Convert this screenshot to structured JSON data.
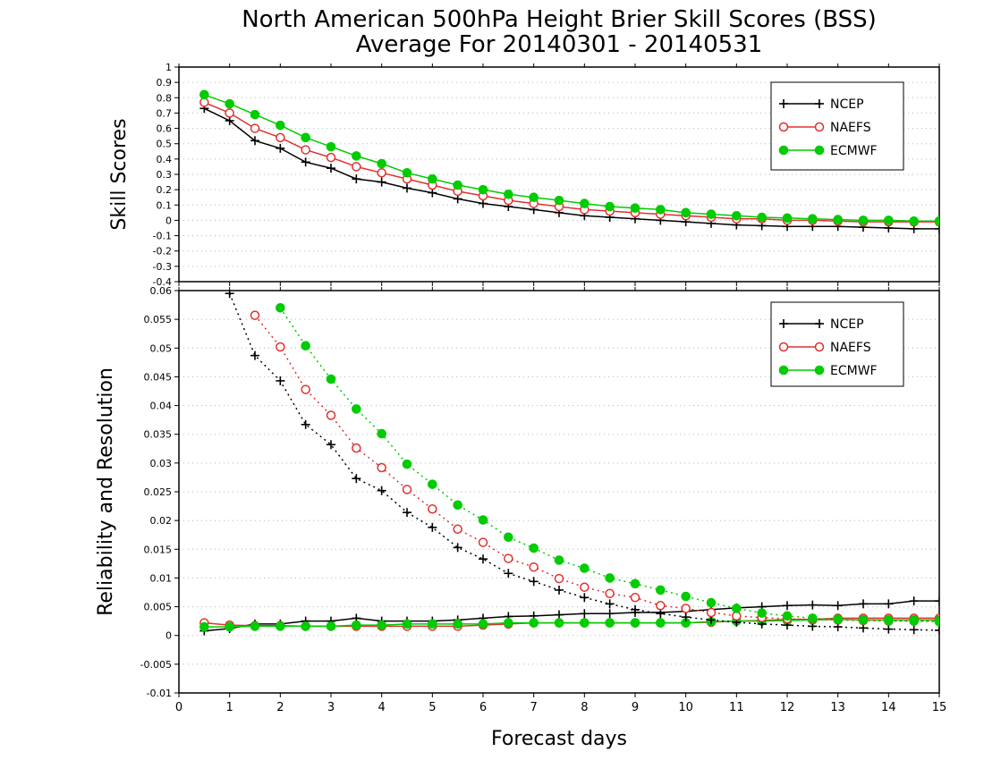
{
  "title_line1": "North American 500hPa Height Brier Skill Scores (BSS)",
  "title_line2": "Average For 20140301 - 20140531",
  "xlabel": "Forecast days",
  "colors": {
    "NCEP": "#000000",
    "NAEFS": "#e03030",
    "ECMWF": "#00cc00"
  },
  "chart_data": [
    {
      "type": "line",
      "ylabel": "Skill Scores",
      "xlim": [
        0,
        15
      ],
      "ylim": [
        -0.4,
        1
      ],
      "x_ticks": [
        "0",
        "1",
        "2",
        "3",
        "4",
        "5",
        "6",
        "7",
        "8",
        "9",
        "10",
        "11",
        "12",
        "13",
        "14",
        "15"
      ],
      "y_ticks": [
        "-0.4",
        "-0.3",
        "-0.2",
        "-0.1",
        "0",
        "0.1",
        "0.2",
        "0.3",
        "0.4",
        "0.5",
        "0.6",
        "0.7",
        "0.8",
        "0.9",
        "1"
      ],
      "grid": true,
      "legend": "top-right",
      "x": [
        0.5,
        1,
        1.5,
        2,
        2.5,
        3,
        3.5,
        4,
        4.5,
        5,
        5.5,
        6,
        6.5,
        7,
        7.5,
        8,
        8.5,
        9,
        9.5,
        10,
        10.5,
        11,
        11.5,
        12,
        12.5,
        13,
        13.5,
        14,
        14.5,
        15
      ],
      "series": [
        {
          "name": "NCEP",
          "marker": "plus",
          "style": "solid",
          "values": [
            0.73,
            0.65,
            0.52,
            0.47,
            0.38,
            0.34,
            0.27,
            0.25,
            0.21,
            0.18,
            0.14,
            0.11,
            0.09,
            0.07,
            0.05,
            0.03,
            0.02,
            0.01,
            0.0,
            -0.01,
            -0.02,
            -0.03,
            -0.035,
            -0.04,
            -0.04,
            -0.04,
            -0.045,
            -0.05,
            -0.055,
            -0.055
          ]
        },
        {
          "name": "NAEFS",
          "marker": "circle-open",
          "style": "solid",
          "values": [
            0.77,
            0.7,
            0.6,
            0.54,
            0.46,
            0.41,
            0.35,
            0.31,
            0.27,
            0.23,
            0.19,
            0.16,
            0.13,
            0.11,
            0.09,
            0.07,
            0.06,
            0.05,
            0.04,
            0.03,
            0.02,
            0.01,
            0.01,
            0.0,
            0.0,
            -0.005,
            -0.01,
            -0.01,
            -0.01,
            -0.01
          ]
        },
        {
          "name": "ECMWF",
          "marker": "circle-filled",
          "style": "solid",
          "values": [
            0.82,
            0.76,
            0.69,
            0.62,
            0.54,
            0.48,
            0.42,
            0.37,
            0.31,
            0.27,
            0.23,
            0.2,
            0.17,
            0.15,
            0.13,
            0.11,
            0.09,
            0.08,
            0.07,
            0.05,
            0.04,
            0.03,
            0.02,
            0.015,
            0.01,
            0.005,
            0.0,
            0.0,
            -0.005,
            -0.005
          ]
        }
      ]
    },
    {
      "type": "line",
      "ylabel": "Reliability and Resolution",
      "xlim": [
        0,
        15
      ],
      "ylim": [
        -0.01,
        0.06
      ],
      "x_ticks": [
        "0",
        "1",
        "2",
        "3",
        "4",
        "5",
        "6",
        "7",
        "8",
        "9",
        "10",
        "11",
        "12",
        "13",
        "14",
        "15"
      ],
      "y_ticks": [
        "-0.01",
        "-0.005",
        "0",
        "0.005",
        "0.01",
        "0.015",
        "0.02",
        "0.025",
        "0.03",
        "0.035",
        "0.04",
        "0.045",
        "0.05",
        "0.055",
        "0.06"
      ],
      "grid": true,
      "legend": "top-right",
      "x": [
        0.5,
        1,
        1.5,
        2,
        2.5,
        3,
        3.5,
        4,
        4.5,
        5,
        5.5,
        6,
        6.5,
        7,
        7.5,
        8,
        8.5,
        9,
        9.5,
        10,
        10.5,
        11,
        11.5,
        12,
        12.5,
        13,
        13.5,
        14,
        14.5,
        15
      ],
      "series": [
        {
          "name": "NCEP",
          "role": "reliability",
          "marker": "plus",
          "style": "solid",
          "values": [
            0.0008,
            0.0012,
            0.002,
            0.002,
            0.0025,
            0.0025,
            0.003,
            0.0025,
            0.0025,
            0.0025,
            0.0027,
            0.003,
            0.0033,
            0.0034,
            0.0036,
            0.0038,
            0.0038,
            0.004,
            0.004,
            0.0042,
            0.0045,
            0.0048,
            0.005,
            0.0052,
            0.0053,
            0.0052,
            0.0055,
            0.0055,
            0.006,
            0.006
          ]
        },
        {
          "name": "NAEFS",
          "role": "reliability",
          "marker": "circle-open",
          "style": "solid",
          "values": [
            0.0022,
            0.0018,
            0.0017,
            0.0017,
            0.0016,
            0.0016,
            0.0016,
            0.0016,
            0.0016,
            0.0016,
            0.0016,
            0.0018,
            0.002,
            0.0022,
            0.0022,
            0.0022,
            0.0022,
            0.0022,
            0.0022,
            0.0022,
            0.0023,
            0.0025,
            0.0026,
            0.0028,
            0.0028,
            0.003,
            0.003,
            0.003,
            0.003,
            0.003
          ]
        },
        {
          "name": "ECMWF",
          "role": "reliability",
          "marker": "circle-filled",
          "style": "solid",
          "values": [
            0.0015,
            0.0015,
            0.0016,
            0.0016,
            0.0016,
            0.0016,
            0.0018,
            0.0018,
            0.002,
            0.002,
            0.002,
            0.002,
            0.0022,
            0.0022,
            0.0022,
            0.0022,
            0.0022,
            0.0022,
            0.0022,
            0.0022,
            0.0024,
            0.0025,
            0.0025,
            0.0026,
            0.0027,
            0.0028,
            0.0027,
            0.0027,
            0.0027,
            0.0027
          ]
        },
        {
          "name": "NCEP",
          "role": "resolution",
          "marker": "plus",
          "style": "dotted",
          "values": [
            null,
            0.0595,
            0.0487,
            0.0443,
            0.0367,
            0.0332,
            0.0273,
            0.0252,
            0.0214,
            0.0188,
            0.0153,
            0.0133,
            0.0108,
            0.0094,
            0.0079,
            0.0066,
            0.0055,
            0.0045,
            0.0038,
            0.0032,
            0.0027,
            0.0023,
            0.002,
            0.0018,
            0.0016,
            0.0015,
            0.0013,
            0.0011,
            0.001,
            0.0009
          ]
        },
        {
          "name": "NAEFS",
          "role": "resolution",
          "marker": "circle-open",
          "style": "dotted",
          "values": [
            null,
            null,
            0.0557,
            0.0502,
            0.0428,
            0.0383,
            0.0326,
            0.0292,
            0.0254,
            0.022,
            0.0185,
            0.0162,
            0.0134,
            0.0119,
            0.0099,
            0.0084,
            0.0073,
            0.0066,
            0.0052,
            0.0047,
            0.004,
            0.0034,
            0.0031,
            0.0029,
            0.0028,
            0.0027,
            0.0026,
            0.0025,
            0.0025,
            0.0025
          ]
        },
        {
          "name": "ECMWF",
          "role": "resolution",
          "marker": "circle-filled",
          "style": "dotted",
          "values": [
            null,
            null,
            null,
            0.057,
            0.0504,
            0.0446,
            0.0394,
            0.0351,
            0.0298,
            0.0263,
            0.0227,
            0.0201,
            0.0171,
            0.0152,
            0.0131,
            0.0117,
            0.01,
            0.009,
            0.0079,
            0.0068,
            0.0057,
            0.0047,
            0.0039,
            0.0034,
            0.003,
            0.0028,
            0.0027,
            0.0026,
            0.0025,
            0.0024
          ]
        }
      ]
    }
  ]
}
